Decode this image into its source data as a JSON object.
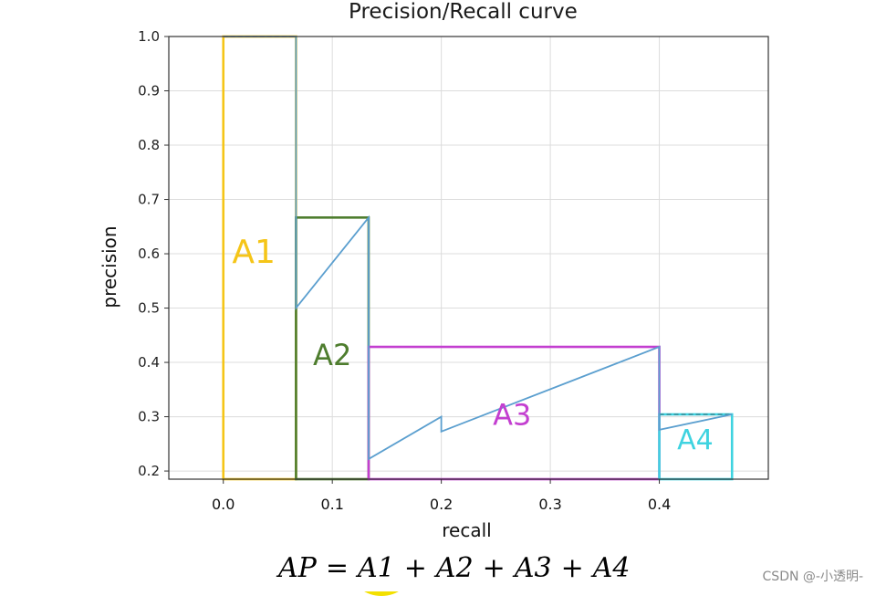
{
  "chart_data": {
    "type": "area",
    "title": "Precision/Recall curve",
    "xlabel": "recall",
    "ylabel": "precision",
    "xlim": [
      -0.05,
      0.5
    ],
    "ylim": [
      0.185,
      1.0
    ],
    "xticks": [
      "0.0",
      "0.1",
      "0.2",
      "0.3",
      "0.4"
    ],
    "yticks": [
      "0.2",
      "0.3",
      "0.4",
      "0.5",
      "0.6",
      "0.7",
      "0.8",
      "0.9",
      "1.0"
    ],
    "grid": true,
    "pr_curve": {
      "x": [
        0.0,
        0.0667,
        0.0667,
        0.1333,
        0.1333,
        0.2,
        0.2,
        0.4,
        0.4,
        0.4667
      ],
      "y": [
        1.0,
        1.0,
        0.5,
        0.6667,
        0.2222,
        0.3,
        0.2727,
        0.4286,
        0.2759,
        0.3043
      ]
    },
    "interpolated_precision": [
      {
        "x0": 0.0,
        "x1": 0.0667,
        "y": 1.0
      },
      {
        "x0": 0.0667,
        "x1": 0.1333,
        "y": 0.6667
      },
      {
        "x0": 0.1333,
        "x1": 0.4,
        "y": 0.4286
      },
      {
        "x0": 0.4,
        "x1": 0.4667,
        "y": 0.3043
      }
    ],
    "regions": [
      {
        "name": "A1",
        "x0": 0.0,
        "x1": 0.0667,
        "y_top": 1.0,
        "color": "#f5c518"
      },
      {
        "name": "A2",
        "x0": 0.0667,
        "x1": 0.1333,
        "y_top": 0.6667,
        "color": "#4e7d2e"
      },
      {
        "name": "A3",
        "x0": 0.1333,
        "x1": 0.4,
        "y_top": 0.4286,
        "color": "#c33fd0"
      },
      {
        "name": "A4",
        "x0": 0.4,
        "x1": 0.4667,
        "y_top": 0.3043,
        "color": "#3fd3e0"
      }
    ]
  },
  "formula": {
    "ap": "AP",
    "eq": "=",
    "plus": "+",
    "terms": [
      "A1",
      "A2",
      "A3",
      "A4"
    ]
  },
  "watermark": "CSDN @-小透明-"
}
